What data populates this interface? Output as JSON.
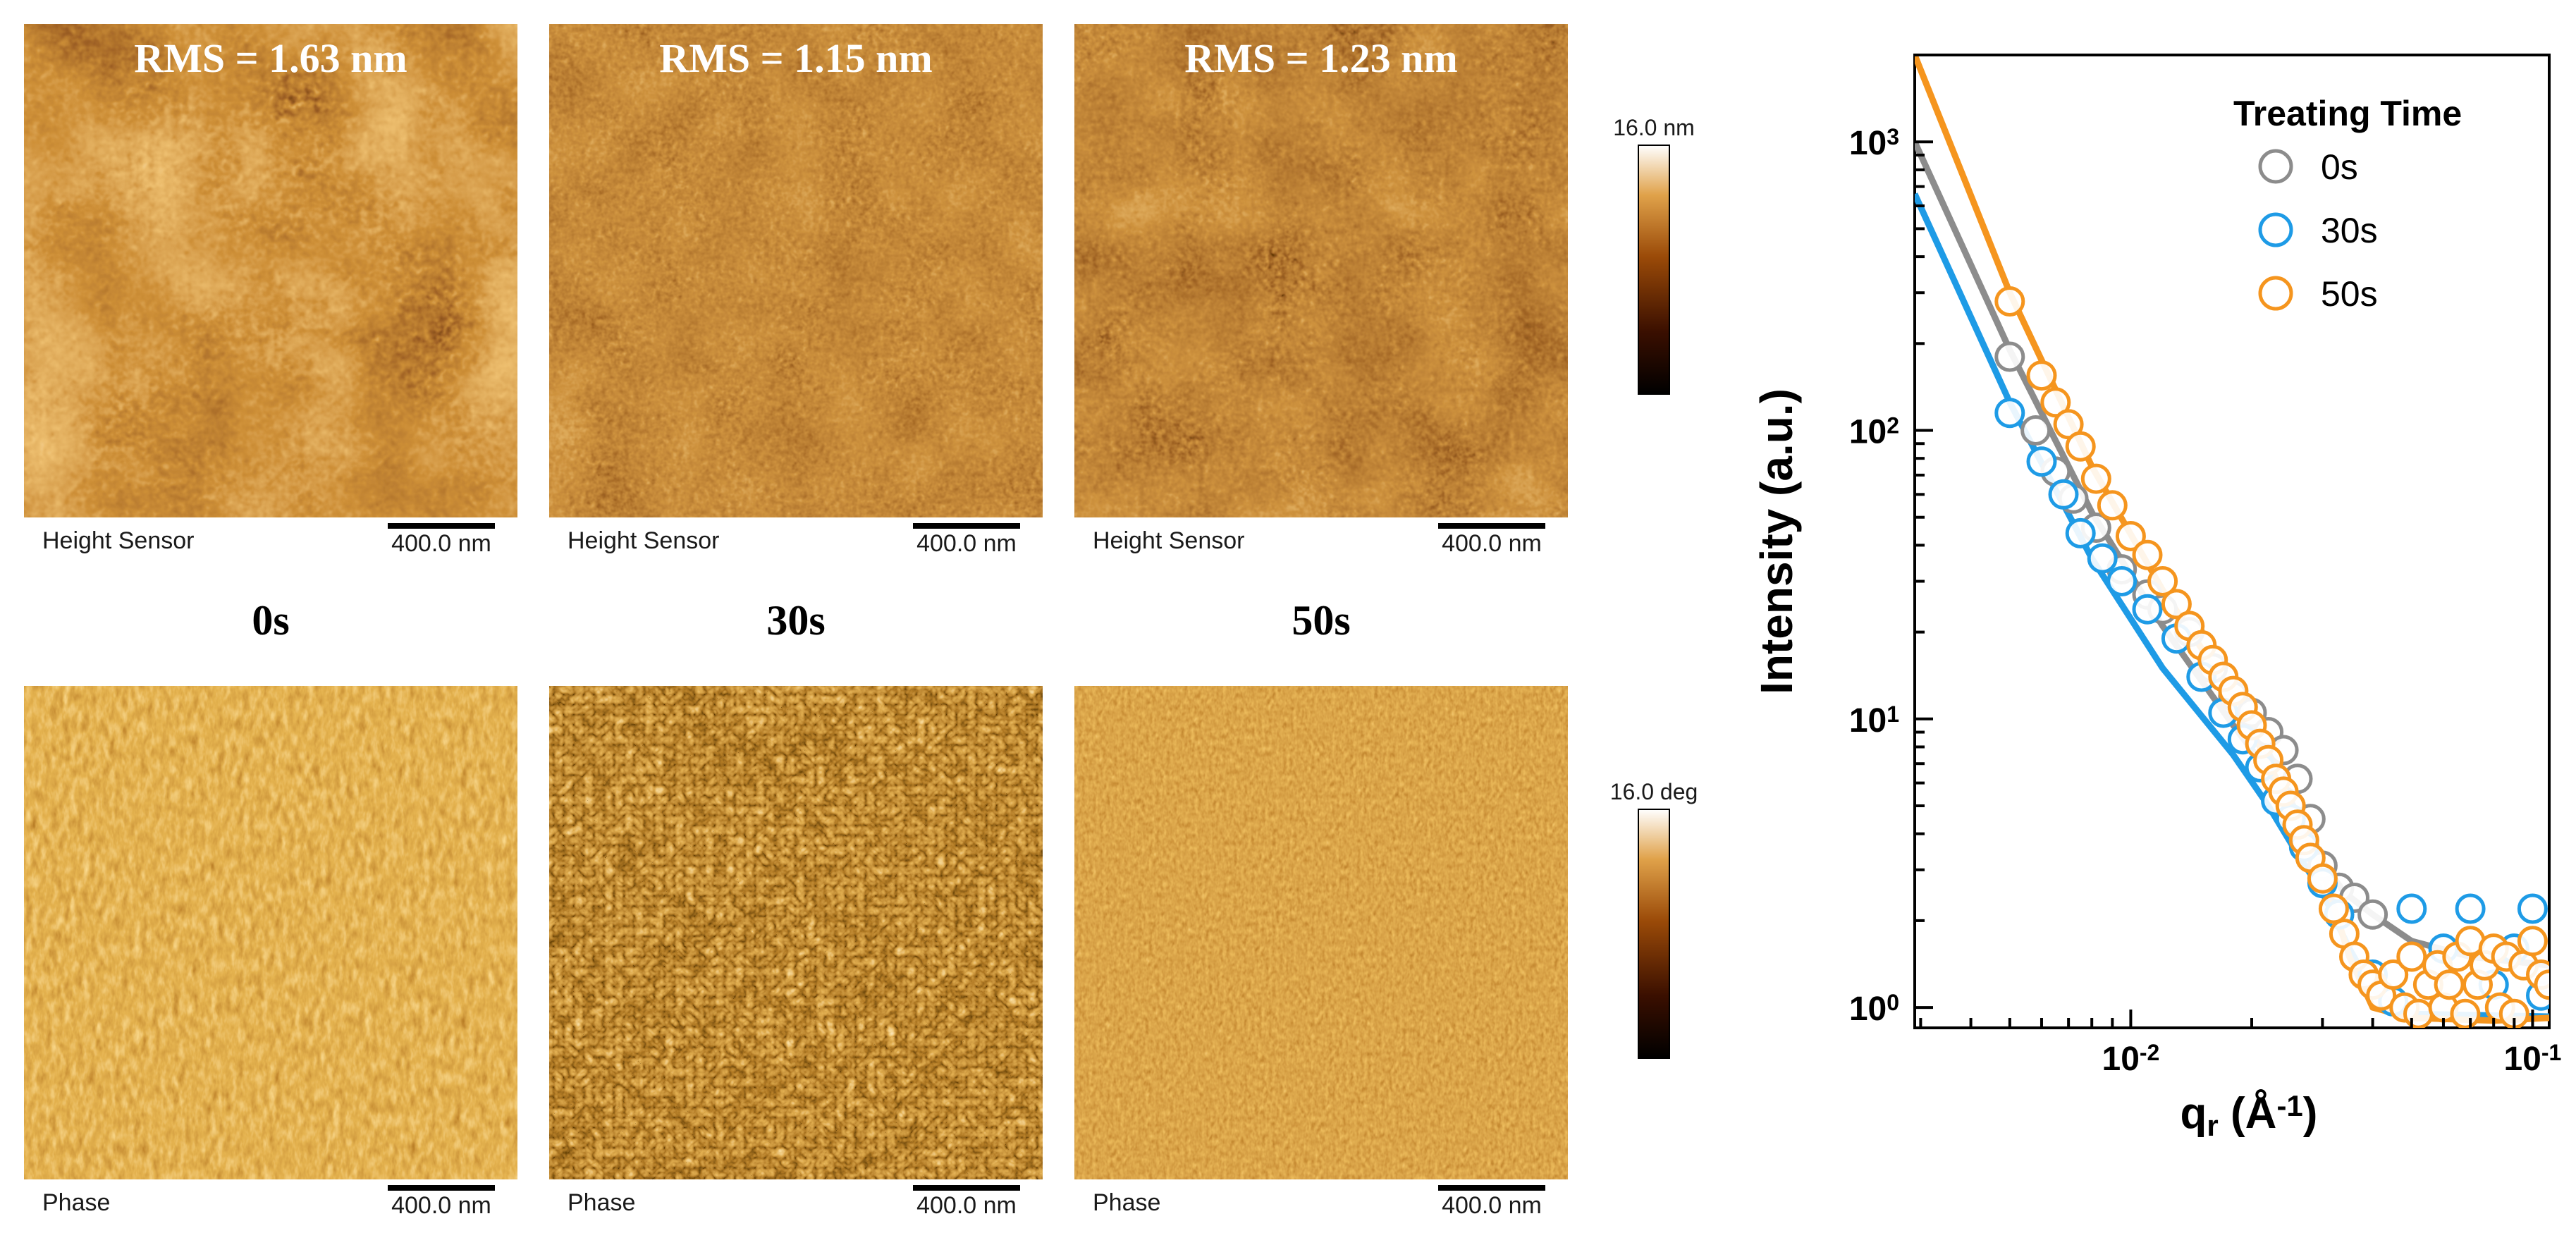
{
  "afm": {
    "colors": {
      "dark": "#1a0600",
      "mid": "#8a3a06",
      "light": "#e7a64d",
      "highlight": "#fff1c8"
    },
    "panels": [
      {
        "time_label": "0s",
        "rms_label": "RMS = 1.63 nm",
        "height_caption": "Height Sensor",
        "phase_caption": "Phase",
        "height_scalebar": "400.0 nm",
        "phase_scalebar": "400.0 nm"
      },
      {
        "time_label": "30s",
        "rms_label": "RMS = 1.15 nm",
        "height_caption": "Height Sensor",
        "phase_caption": "Phase",
        "height_scalebar": "400.0 nm",
        "phase_scalebar": "400.0 nm"
      },
      {
        "time_label": "50s",
        "rms_label": "RMS = 1.23 nm",
        "height_caption": "Height Sensor",
        "phase_caption": "Phase",
        "height_scalebar": "400.0 nm",
        "phase_scalebar": "400.0 nm"
      }
    ],
    "height_colorbar": {
      "max_label": "16.0 nm"
    },
    "phase_colorbar": {
      "max_label": "16.0 deg"
    }
  },
  "chart_data": {
    "type": "scatter",
    "title": "",
    "xlabel": "q",
    "xlabel_sub": "r",
    "xlabel_unit_open": " (Å",
    "xlabel_sup": "-1",
    "xlabel_unit_close": ")",
    "ylabel": "Intensity (a.u.)",
    "x_scale": "log",
    "y_scale": "log",
    "xlim": [
      0.0029,
      0.11
    ],
    "ylim": [
      0.85,
      2000
    ],
    "x_ticks": [
      {
        "value": 0.01,
        "base": "10",
        "exp": "-2"
      },
      {
        "value": 0.1,
        "base": "10",
        "exp": "-1"
      }
    ],
    "y_ticks": [
      {
        "value": 1,
        "base": "10",
        "exp": "0"
      },
      {
        "value": 10,
        "base": "10",
        "exp": "1"
      },
      {
        "value": 100,
        "base": "10",
        "exp": "2"
      },
      {
        "value": 1000,
        "base": "10",
        "exp": "3"
      }
    ],
    "legend": {
      "title": "Treating Time",
      "position": "top-right"
    },
    "series": [
      {
        "name": "0s",
        "color": "#8c8c8c",
        "fit": [
          [
            0.0029,
            1000
          ],
          [
            0.005,
            190
          ],
          [
            0.008,
            52
          ],
          [
            0.012,
            21
          ],
          [
            0.018,
            9.5
          ],
          [
            0.025,
            5.2
          ],
          [
            0.03,
            3.2
          ],
          [
            0.034,
            2.5
          ],
          [
            0.04,
            2.1
          ],
          [
            0.05,
            1.7
          ],
          [
            0.07,
            1.5
          ],
          [
            0.11,
            1.4
          ]
        ],
        "points": [
          [
            0.005,
            180
          ],
          [
            0.0058,
            100
          ],
          [
            0.0065,
            72
          ],
          [
            0.0072,
            58
          ],
          [
            0.0082,
            46
          ],
          [
            0.0095,
            33
          ],
          [
            0.011,
            27
          ],
          [
            0.012,
            24
          ],
          [
            0.014,
            20
          ],
          [
            0.016,
            15
          ],
          [
            0.018,
            12
          ],
          [
            0.02,
            10.5
          ],
          [
            0.022,
            9
          ],
          [
            0.024,
            7.8
          ],
          [
            0.026,
            6.2
          ],
          [
            0.028,
            4.5
          ],
          [
            0.03,
            3.1
          ],
          [
            0.033,
            2.6
          ],
          [
            0.036,
            2.4
          ],
          [
            0.04,
            2.1
          ]
        ]
      },
      {
        "name": "30s",
        "color": "#1e9be6",
        "fit": [
          [
            0.0029,
            660
          ],
          [
            0.005,
            125
          ],
          [
            0.008,
            36
          ],
          [
            0.012,
            15
          ],
          [
            0.018,
            7.5
          ],
          [
            0.022,
            5.0
          ],
          [
            0.026,
            3.4
          ],
          [
            0.03,
            2.5
          ],
          [
            0.035,
            1.6
          ],
          [
            0.04,
            1.15
          ],
          [
            0.05,
            0.95
          ],
          [
            0.11,
            0.93
          ]
        ],
        "points": [
          [
            0.005,
            115
          ],
          [
            0.006,
            78
          ],
          [
            0.0068,
            60
          ],
          [
            0.0075,
            44
          ],
          [
            0.0085,
            36
          ],
          [
            0.0095,
            30
          ],
          [
            0.011,
            24
          ],
          [
            0.013,
            19
          ],
          [
            0.015,
            14
          ],
          [
            0.017,
            10.5
          ],
          [
            0.019,
            8.5
          ],
          [
            0.021,
            6.8
          ],
          [
            0.023,
            5.2
          ],
          [
            0.025,
            4.5
          ],
          [
            0.027,
            3.6
          ],
          [
            0.03,
            2.7
          ],
          [
            0.033,
            2.1
          ],
          [
            0.04,
            1.3
          ],
          [
            0.045,
            1.05
          ],
          [
            0.05,
            2.2
          ],
          [
            0.06,
            1.6
          ],
          [
            0.07,
            2.2
          ],
          [
            0.08,
            1.2
          ],
          [
            0.09,
            1.6
          ],
          [
            0.1,
            2.2
          ],
          [
            0.105,
            1.1
          ]
        ]
      },
      {
        "name": "50s",
        "color": "#f5951e",
        "fit": [
          [
            0.0029,
            2000
          ],
          [
            0.005,
            300
          ],
          [
            0.008,
            75
          ],
          [
            0.012,
            28
          ],
          [
            0.018,
            12
          ],
          [
            0.025,
            5
          ],
          [
            0.03,
            3
          ],
          [
            0.035,
            1.5
          ],
          [
            0.04,
            1.0
          ],
          [
            0.05,
            0.92
          ],
          [
            0.08,
            0.9
          ],
          [
            0.11,
            0.92
          ]
        ],
        "points": [
          [
            0.005,
            280
          ],
          [
            0.006,
            155
          ],
          [
            0.0065,
            125
          ],
          [
            0.007,
            105
          ],
          [
            0.0075,
            88
          ],
          [
            0.0082,
            68
          ],
          [
            0.009,
            55
          ],
          [
            0.01,
            43
          ],
          [
            0.011,
            37
          ],
          [
            0.012,
            30
          ],
          [
            0.013,
            25
          ],
          [
            0.014,
            21
          ],
          [
            0.015,
            18
          ],
          [
            0.016,
            16
          ],
          [
            0.017,
            14
          ],
          [
            0.018,
            12.5
          ],
          [
            0.019,
            11
          ],
          [
            0.02,
            9.5
          ],
          [
            0.021,
            8.2
          ],
          [
            0.022,
            7.2
          ],
          [
            0.023,
            6.2
          ],
          [
            0.024,
            5.6
          ],
          [
            0.025,
            5.0
          ],
          [
            0.026,
            4.3
          ],
          [
            0.027,
            3.8
          ],
          [
            0.028,
            3.3
          ],
          [
            0.03,
            2.8
          ],
          [
            0.032,
            2.2
          ],
          [
            0.034,
            1.8
          ],
          [
            0.036,
            1.5
          ],
          [
            0.038,
            1.3
          ],
          [
            0.04,
            1.2
          ],
          [
            0.042,
            1.1
          ],
          [
            0.045,
            1.3
          ],
          [
            0.048,
            1.0
          ],
          [
            0.05,
            1.5
          ],
          [
            0.052,
            0.95
          ],
          [
            0.055,
            1.2
          ],
          [
            0.058,
            1.4
          ],
          [
            0.06,
            1.0
          ],
          [
            0.062,
            1.2
          ],
          [
            0.065,
            1.5
          ],
          [
            0.068,
            0.95
          ],
          [
            0.07,
            1.7
          ],
          [
            0.073,
            1.2
          ],
          [
            0.076,
            1.4
          ],
          [
            0.08,
            1.6
          ],
          [
            0.083,
            1.0
          ],
          [
            0.086,
            1.5
          ],
          [
            0.09,
            0.95
          ],
          [
            0.095,
            1.4
          ],
          [
            0.1,
            1.7
          ],
          [
            0.105,
            1.3
          ],
          [
            0.11,
            1.2
          ]
        ]
      }
    ]
  }
}
